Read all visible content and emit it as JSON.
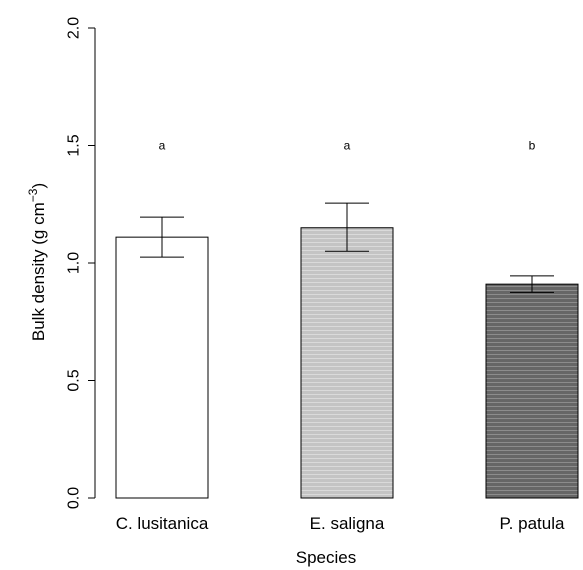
{
  "chart_data": {
    "type": "bar",
    "categories": [
      "C. lusitanica",
      "E. saligna",
      "P. patula"
    ],
    "values": [
      1.11,
      1.15,
      0.91
    ],
    "error_low": [
      1.025,
      1.05,
      0.875
    ],
    "error_high": [
      1.195,
      1.255,
      0.945
    ],
    "significance_letters": [
      "a",
      "a",
      "b"
    ],
    "letter_y": 1.5,
    "xlabel": "Species",
    "ylabel": {
      "prefix": "Bulk density (g cm",
      "superscript": "−3",
      "suffix": ")"
    },
    "ylim": [
      0,
      2.0
    ],
    "yticks": [
      0.0,
      0.5,
      1.0,
      1.5,
      2.0
    ],
    "ytick_labels": [
      "0.0",
      "0.5",
      "1.0",
      "1.5",
      "2.0"
    ],
    "bar_colors": [
      "#ffffff",
      "#c8c8c8",
      "#6a6a6a"
    ],
    "stripe_colors": [
      null,
      "#d9d9d9",
      "#8a8a8a"
    ],
    "grid": false
  }
}
